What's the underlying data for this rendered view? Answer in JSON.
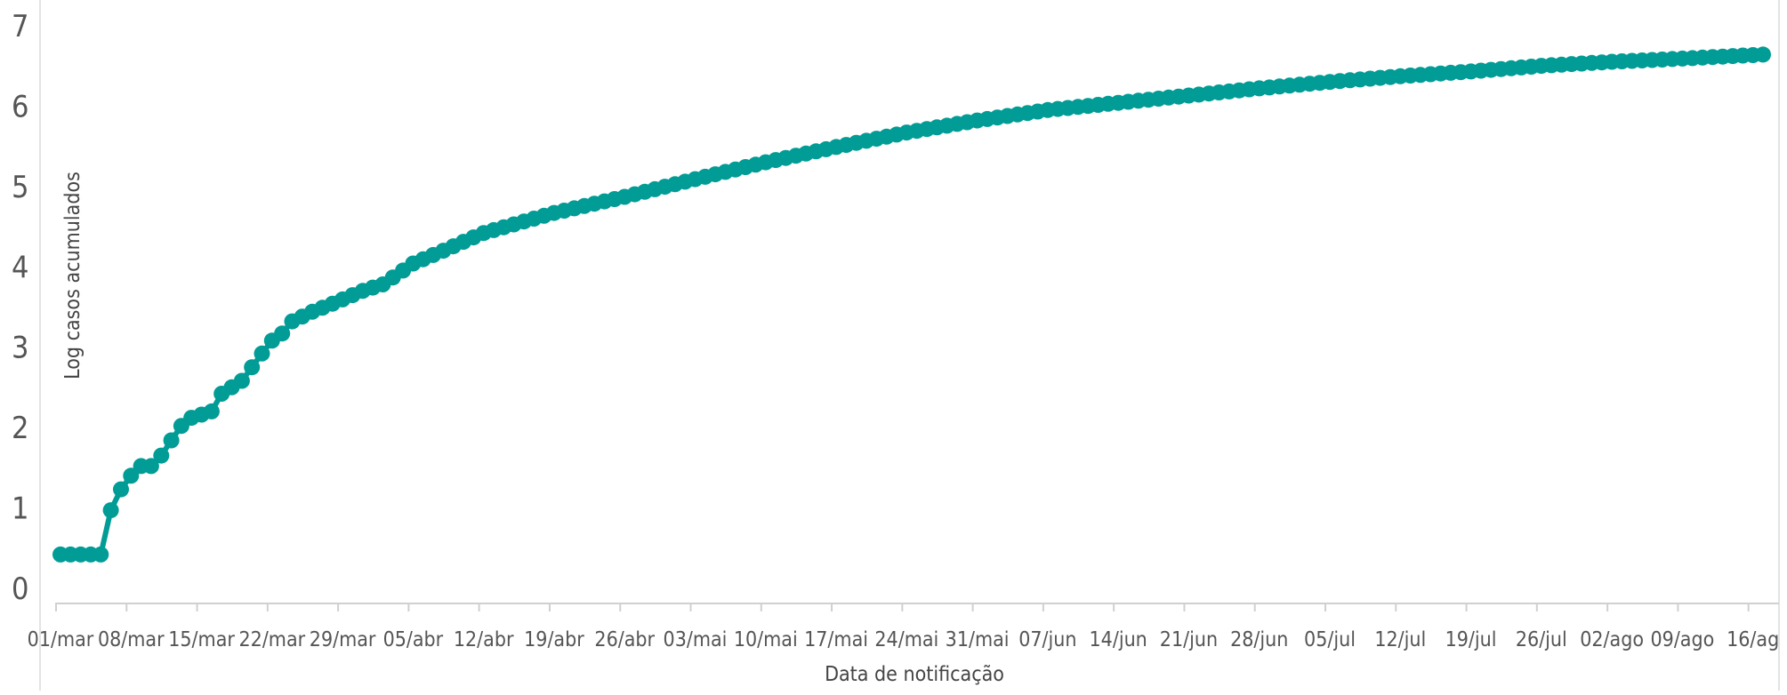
{
  "chart_data": {
    "type": "line",
    "title": "",
    "xlabel": "Data de notificação",
    "ylabel": "Log casos acumulados",
    "ylim": [
      0,
      7
    ],
    "yticks": [
      "0",
      "1",
      "2",
      "3",
      "4",
      "5",
      "6",
      "7"
    ],
    "grid": false,
    "legend": "none",
    "x_tick_labels": [
      "01/mar",
      "08/mar",
      "15/mar",
      "22/mar",
      "29/mar",
      "05/abr",
      "12/abr",
      "19/abr",
      "26/abr",
      "03/mai",
      "10/mai",
      "17/mai",
      "24/mai",
      "31/mai",
      "07/jun",
      "14/jun",
      "21/jun",
      "28/jun",
      "05/jul",
      "12/jul",
      "19/jul",
      "26/jul",
      "02/ago",
      "09/ago",
      "16/ag"
    ],
    "x_start": "01/mar",
    "anchor_values": [
      [
        "01/mar",
        0.3
      ],
      [
        "02/mar",
        0.3
      ],
      [
        "03/mar",
        0.3
      ],
      [
        "04/mar",
        0.3
      ],
      [
        "05/mar",
        0.3
      ],
      [
        "06/mar",
        0.85
      ],
      [
        "07/mar",
        1.11
      ],
      [
        "08/mar",
        1.28
      ],
      [
        "09/mar",
        1.4
      ],
      [
        "10/mar",
        1.4
      ],
      [
        "11/mar",
        1.53
      ],
      [
        "12/mar",
        1.72
      ],
      [
        "13/mar",
        1.9
      ],
      [
        "14/mar",
        2.0
      ],
      [
        "16/mar",
        2.08
      ],
      [
        "17/mar",
        2.3
      ],
      [
        "18/mar",
        2.38
      ],
      [
        "19/mar",
        2.46
      ],
      [
        "20/mar",
        2.63
      ],
      [
        "21/mar",
        2.8
      ],
      [
        "22/mar",
        2.96
      ],
      [
        "23/mar",
        3.05
      ],
      [
        "24/mar",
        3.2
      ],
      [
        "26/mar",
        3.32
      ],
      [
        "28/mar",
        3.42
      ],
      [
        "31/mar",
        3.58
      ],
      [
        "02/abr",
        3.66
      ],
      [
        "05/abr",
        3.92
      ],
      [
        "08/abr",
        4.08
      ],
      [
        "12/abr",
        4.3
      ],
      [
        "19/abr",
        4.55
      ],
      [
        "26/abr",
        4.75
      ],
      [
        "03/mai",
        4.97
      ],
      [
        "10/mai",
        5.18
      ],
      [
        "17/mai",
        5.37
      ],
      [
        "24/mai",
        5.55
      ],
      [
        "31/mai",
        5.7
      ],
      [
        "07/jun",
        5.83
      ],
      [
        "14/jun",
        5.92
      ],
      [
        "21/jun",
        6.01
      ],
      [
        "28/jun",
        6.1
      ],
      [
        "05/jul",
        6.18
      ],
      [
        "12/jul",
        6.25
      ],
      [
        "19/jul",
        6.31
      ],
      [
        "26/jul",
        6.38
      ],
      [
        "02/ago",
        6.43
      ],
      [
        "09/ago",
        6.47
      ],
      [
        "17/ago",
        6.52
      ]
    ],
    "series": [
      {
        "color": "#009c95"
      }
    ]
  }
}
